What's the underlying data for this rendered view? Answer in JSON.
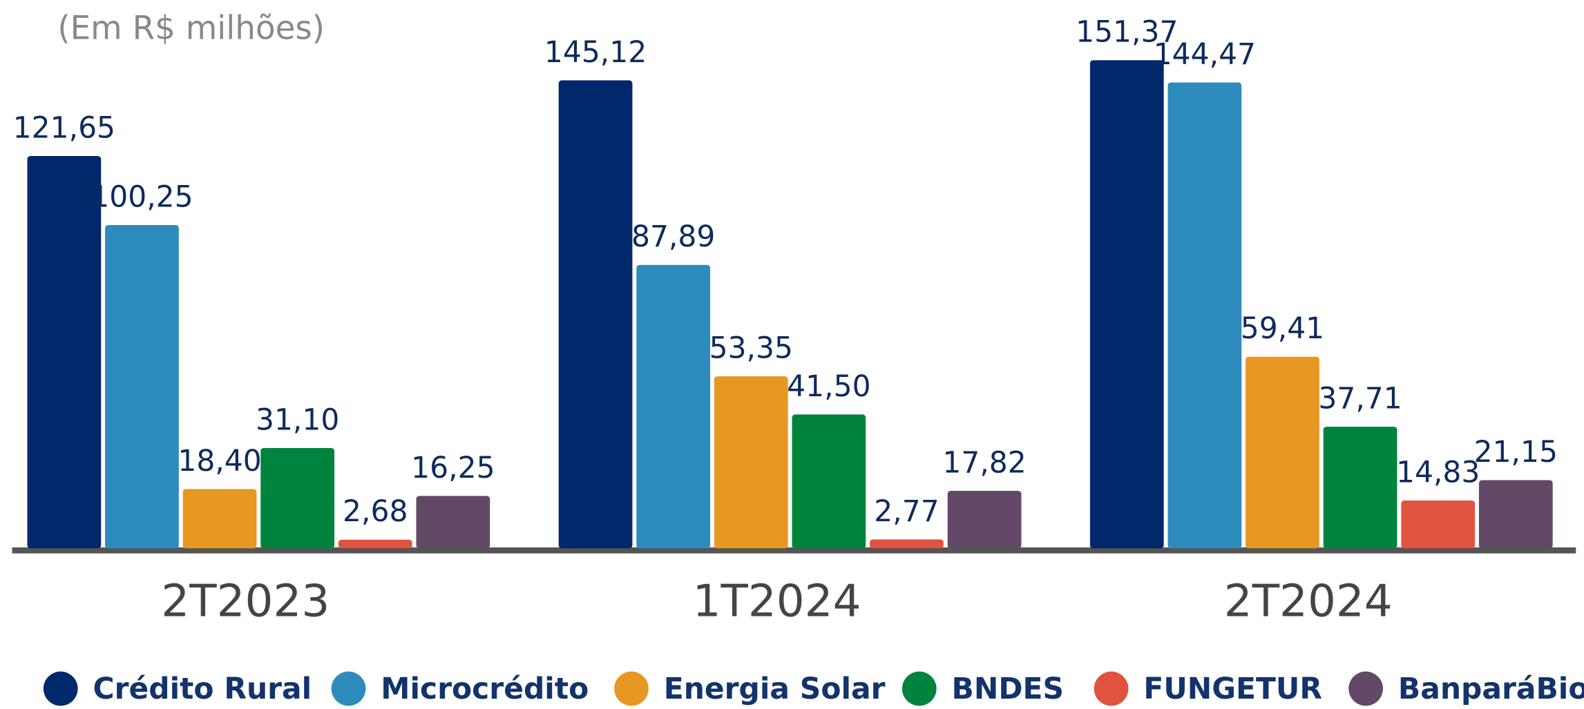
{
  "chart_data": {
    "type": "bar",
    "subtitle": "(Em R$ milhões)",
    "categories": [
      "2T2023",
      "1T2024",
      "2T2024"
    ],
    "ylim": [
      0,
      170
    ],
    "series": [
      {
        "name": "Crédito Rural",
        "color": "#00286b",
        "values": [
          121.65,
          145.12,
          151.37
        ],
        "value_labels": [
          "121,65",
          "145,12",
          "151,37"
        ]
      },
      {
        "name": "Microcrédito",
        "color": "#2e8bbd",
        "values": [
          100.25,
          87.89,
          144.47
        ],
        "value_labels": [
          "100,25",
          "87,89",
          "144,47"
        ]
      },
      {
        "name": "Energia Solar",
        "color": "#e69823",
        "values": [
          18.4,
          53.35,
          59.41
        ],
        "value_labels": [
          "18,40",
          "53,35",
          "59,41"
        ]
      },
      {
        "name": "BNDES",
        "color": "#00843d",
        "values": [
          31.1,
          41.5,
          37.71
        ],
        "value_labels": [
          "31,10",
          "41,50",
          "37,71"
        ]
      },
      {
        "name": "FUNGETUR",
        "color": "#e0533f",
        "values": [
          2.68,
          2.77,
          14.83
        ],
        "value_labels": [
          "2,68",
          "2,77",
          "14,83"
        ]
      },
      {
        "name": "BanparáBio",
        "color": "#634867",
        "values": [
          16.25,
          17.82,
          21.15
        ],
        "value_labels": [
          "16,25",
          "17,82",
          "21,15"
        ]
      }
    ]
  }
}
